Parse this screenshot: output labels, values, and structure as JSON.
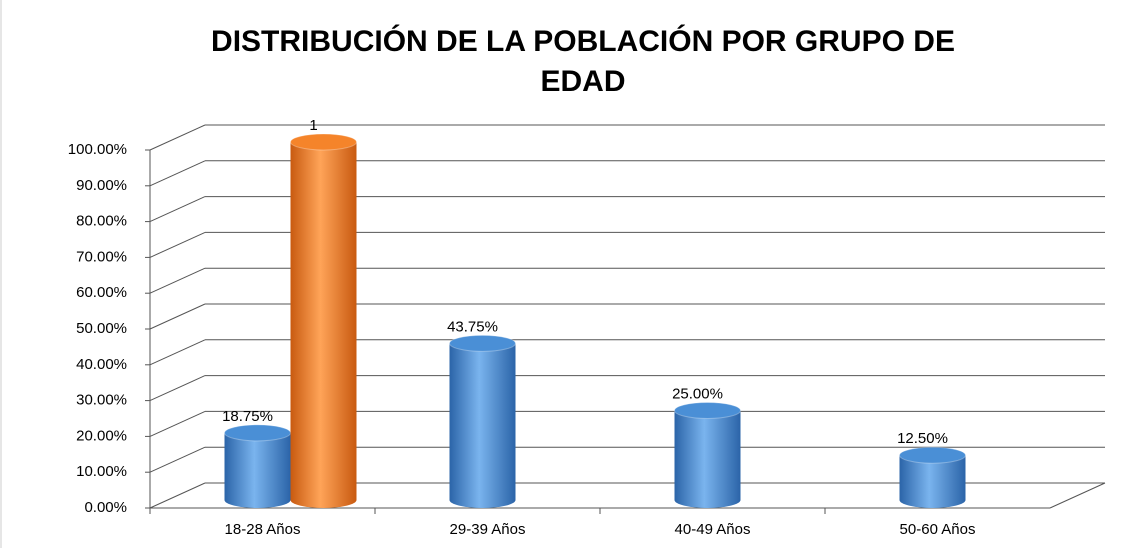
{
  "chart_data": {
    "type": "bar3d",
    "title": "DISTRIBUCIÓN DE LA POBLACIÓN POR GRUPO DE EDAD",
    "categories": [
      "18-28 Años",
      "29-39 Años",
      "40-49 Años",
      "50-60 Años"
    ],
    "series": [
      {
        "color": "#4a8fd6",
        "values": [
          18.75,
          43.75,
          25,
          12.5
        ],
        "value_labels": [
          "18.75%",
          "43.75%",
          "25.00%",
          "12.50%"
        ]
      },
      {
        "color": "#f5842a",
        "values": [
          100,
          null,
          null,
          null
        ],
        "value_labels": [
          "1",
          null,
          null,
          null
        ]
      }
    ],
    "ylim": [
      0,
      100
    ],
    "yticks": [
      {
        "value": 0,
        "label": "0.00%"
      },
      {
        "value": 10,
        "label": "10.00%"
      },
      {
        "value": 20,
        "label": "20.00%"
      },
      {
        "value": 30,
        "label": "30.00%"
      },
      {
        "value": 40,
        "label": "40.00%"
      },
      {
        "value": 50,
        "label": "50.00%"
      },
      {
        "value": 60,
        "label": "60.00%"
      },
      {
        "value": 70,
        "label": "70.00%"
      },
      {
        "value": 80,
        "label": "80.00%"
      },
      {
        "value": 90,
        "label": "90.00%"
      },
      {
        "value": 100,
        "label": "100.00%"
      }
    ],
    "grid": true
  }
}
